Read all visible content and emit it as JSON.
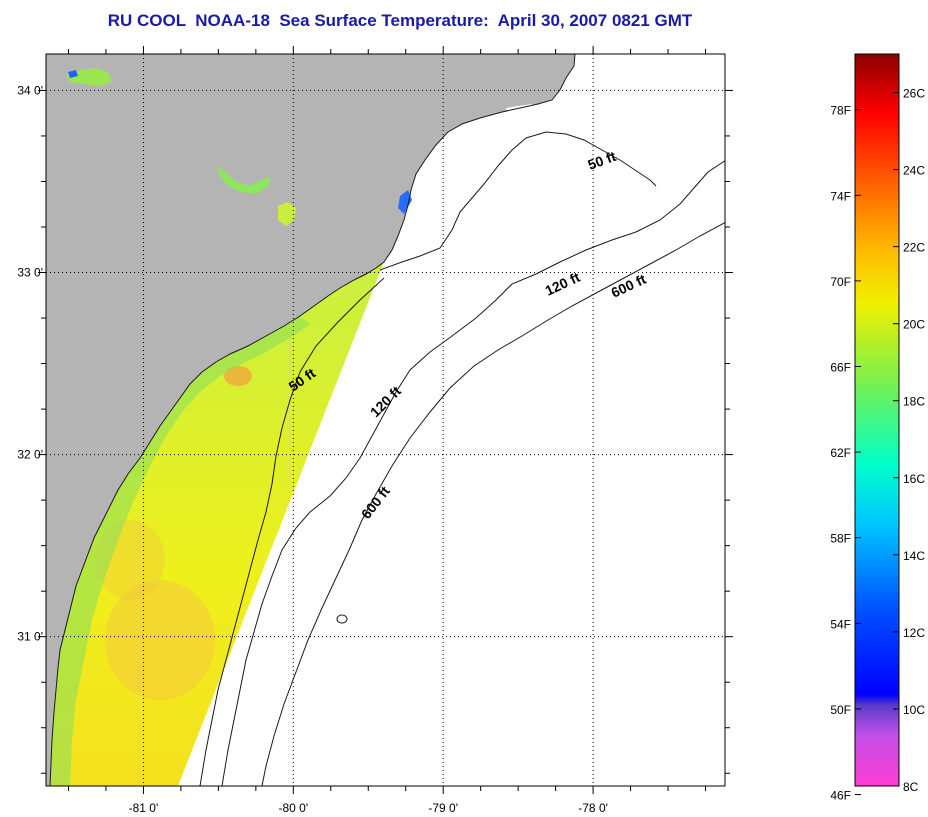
{
  "title": "RU COOL  NOAA-18  Sea Surface Temperature:  April 30, 2007 0821 GMT",
  "map": {
    "lon_ticks": [
      {
        "value": -81,
        "label": "-81 0'"
      },
      {
        "value": -80,
        "label": "-80 0'"
      },
      {
        "value": -79,
        "label": "-79 0'"
      },
      {
        "value": -78,
        "label": "-78 0'"
      }
    ],
    "lat_ticks": [
      {
        "value": 34,
        "label": "34 0'"
      },
      {
        "value": 33,
        "label": "33 0'"
      },
      {
        "value": 32,
        "label": "32 0'"
      },
      {
        "value": 31,
        "label": "31 0'"
      }
    ],
    "lon_range": [
      -81.65,
      -77.12
    ],
    "lat_range": [
      30.18,
      34.2
    ],
    "grid": "dotted",
    "contour_labels": [
      "50 ft",
      "120 ft",
      "600 ft",
      "50 ft",
      "120 ft",
      "600 ft"
    ],
    "colors": {
      "land": "#b4b4b4",
      "ocean_no_data": "#ffffff",
      "sst_main": "#e6f01e",
      "sst_warm": "#f5c83c",
      "sst_cool": "#8ee05a",
      "border": "#000000"
    }
  },
  "colorbar": {
    "fahrenheit_labels": [
      "78F",
      "74F",
      "70F",
      "66F",
      "62F",
      "58F",
      "54F",
      "50F",
      "46F"
    ],
    "celsius_labels": [
      "26C",
      "24C",
      "22C",
      "20C",
      "18C",
      "16C",
      "14C",
      "12C",
      "10C",
      "8C"
    ],
    "range_celsius": [
      8,
      27
    ]
  }
}
